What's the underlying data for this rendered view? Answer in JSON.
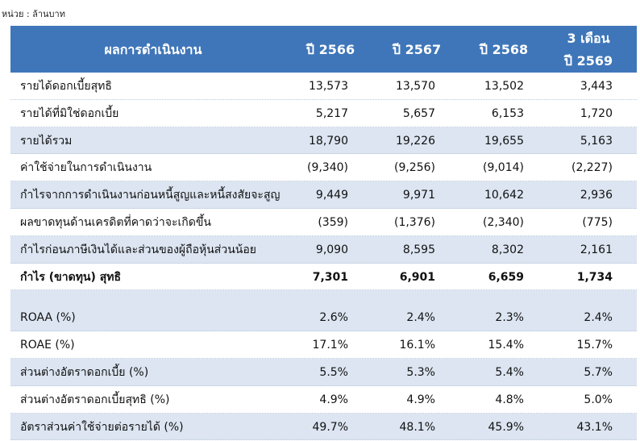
{
  "unit": "หน่วย : ล้านบาท",
  "table": {
    "header": {
      "title": "ผลการดำเนินงาน",
      "columns": [
        "ปี 2566",
        "ปี 2567",
        "ปี 2568",
        [
          "3 เดือน",
          "ปี 2569"
        ]
      ]
    },
    "sections": [
      {
        "rows": [
          {
            "label": "รายได้ดอกเบี้ยสุทธิ",
            "values": [
              "13,573",
              "13,570",
              "13,502",
              "3,443"
            ]
          },
          {
            "label": "รายได้ที่มิใช่ดอกเบี้ย",
            "values": [
              "5,217",
              "5,657",
              "6,153",
              "1,720"
            ]
          },
          {
            "label": "รายได้รวม",
            "values": [
              "18,790",
              "19,226",
              "19,655",
              "5,163"
            ]
          },
          {
            "label": "ค่าใช้จ่ายในการดำเนินงาน",
            "values": [
              "(9,340)",
              "(9,256)",
              "(9,014)",
              "(2,227)"
            ]
          },
          {
            "label": "กำไรจากการดำเนินงานก่อนหนี้สูญและหนี้สงสัยจะสูญ",
            "values": [
              "9,449",
              "9,971",
              "10,642",
              "2,936"
            ]
          },
          {
            "label": "ผลขาดทุนด้านเครดิตที่คาดว่าจะเกิดขึ้น",
            "values": [
              "(359)",
              "(1,376)",
              "(2,340)",
              "(775)"
            ]
          },
          {
            "label": "กำไรก่อนภาษีเงินได้และส่วนของผู้ถือหุ้นส่วนน้อย",
            "values": [
              "9,090",
              "8,595",
              "8,302",
              "2,161"
            ]
          },
          {
            "label": "กำไร (ขาดทุน) สุทธิ",
            "values": [
              "7,301",
              "6,901",
              "6,659",
              "1,734"
            ],
            "bold": true
          }
        ]
      },
      {
        "rows": [
          {
            "label": "ROAA (%)",
            "values": [
              "2.6%",
              "2.4%",
              "2.3%",
              "2.4%"
            ]
          },
          {
            "label": "ROAE (%)",
            "values": [
              "17.1%",
              "16.1%",
              "15.4%",
              "15.7%"
            ]
          },
          {
            "label": "ส่วนต่างอัตราดอกเบี้ย (%)",
            "values": [
              "5.5%",
              "5.3%",
              "5.4%",
              "5.7%"
            ]
          },
          {
            "label": "ส่วนต่างอัตราดอกเบี้ยสุทธิ (%)",
            "values": [
              "4.9%",
              "4.9%",
              "4.8%",
              "5.0%"
            ]
          },
          {
            "label": "อัตราส่วนค่าใช้จ่ายต่อรายได้ (%)",
            "values": [
              "49.7%",
              "48.1%",
              "45.9%",
              "43.1%"
            ]
          }
        ]
      }
    ]
  }
}
